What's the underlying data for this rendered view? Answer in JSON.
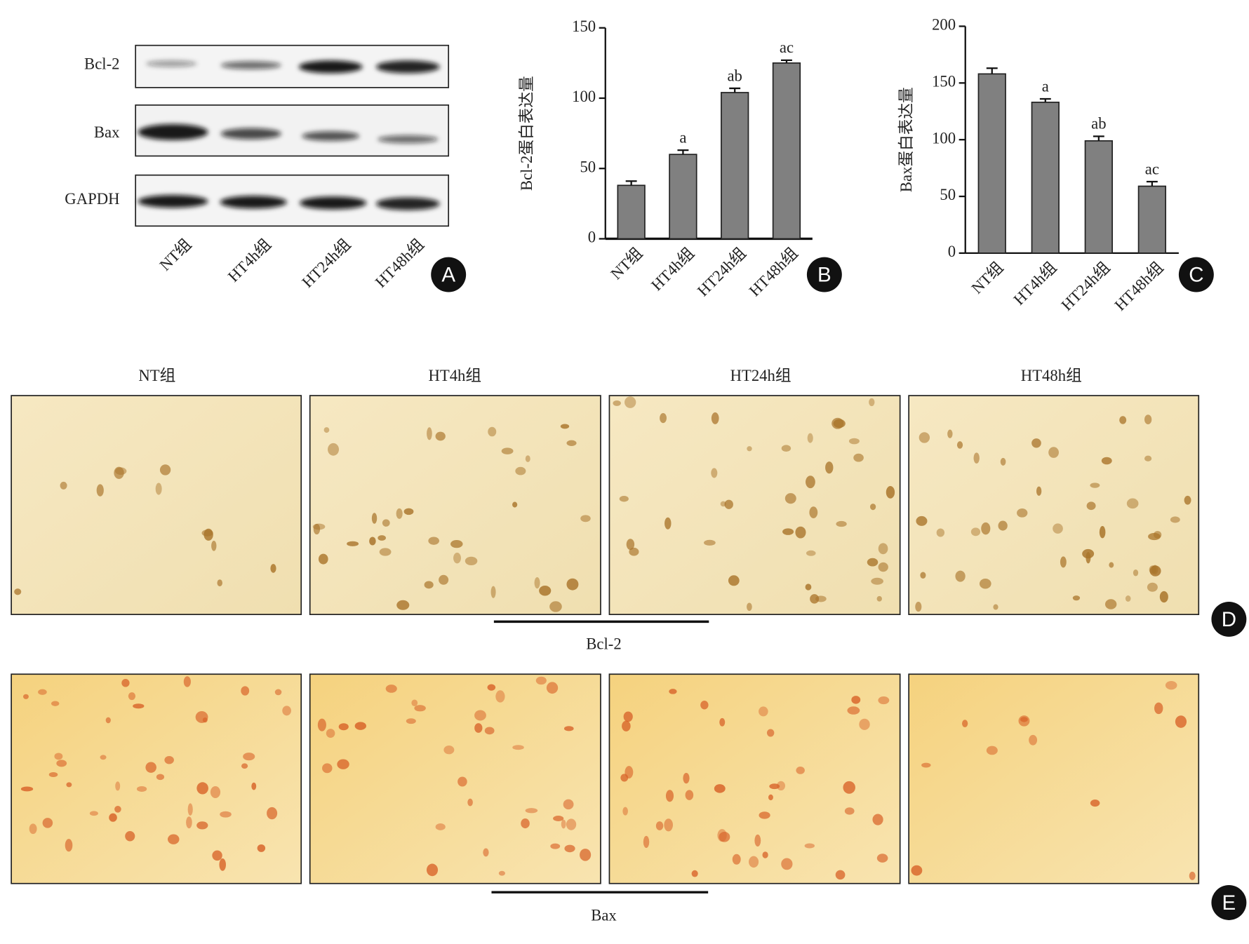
{
  "blot": {
    "rows": [
      "Bcl-2",
      "Bax",
      "GAPDH"
    ],
    "lanes": [
      "NT组",
      "HT4h组",
      "HT24h组",
      "HT48h组"
    ]
  },
  "panel_labels": [
    "A",
    "B",
    "C",
    "D",
    "E"
  ],
  "micrographs": {
    "columns": [
      "NT组",
      "HT4h组",
      "HT24h组",
      "HT48h组"
    ],
    "rows": [
      "Bcl-2",
      "Bax"
    ]
  },
  "chart_data": [
    {
      "type": "bar",
      "y_label": "Bcl-2蛋白表达量",
      "categories": [
        "NT组",
        "HT4h组",
        "HT24h组",
        "HT48h组"
      ],
      "values": [
        38,
        60,
        104,
        125
      ],
      "errors": [
        3,
        3,
        3,
        2
      ],
      "annotations": [
        null,
        "a",
        "ab",
        "ac"
      ],
      "color": "#808080",
      "ylim": [
        0,
        150
      ],
      "yticks": [
        0,
        50,
        100,
        150
      ]
    },
    {
      "type": "bar",
      "y_label": "Bax蛋白表达量",
      "categories": [
        "NT组",
        "HT4h组",
        "HT24h组",
        "HT48h组"
      ],
      "values": [
        158,
        133,
        99,
        59
      ],
      "errors": [
        5,
        3,
        4,
        4
      ],
      "annotations": [
        null,
        "a",
        "ab",
        "ac"
      ],
      "color": "#808080",
      "ylim": [
        0,
        200
      ],
      "yticks": [
        0,
        50,
        100,
        150,
        200
      ]
    }
  ]
}
